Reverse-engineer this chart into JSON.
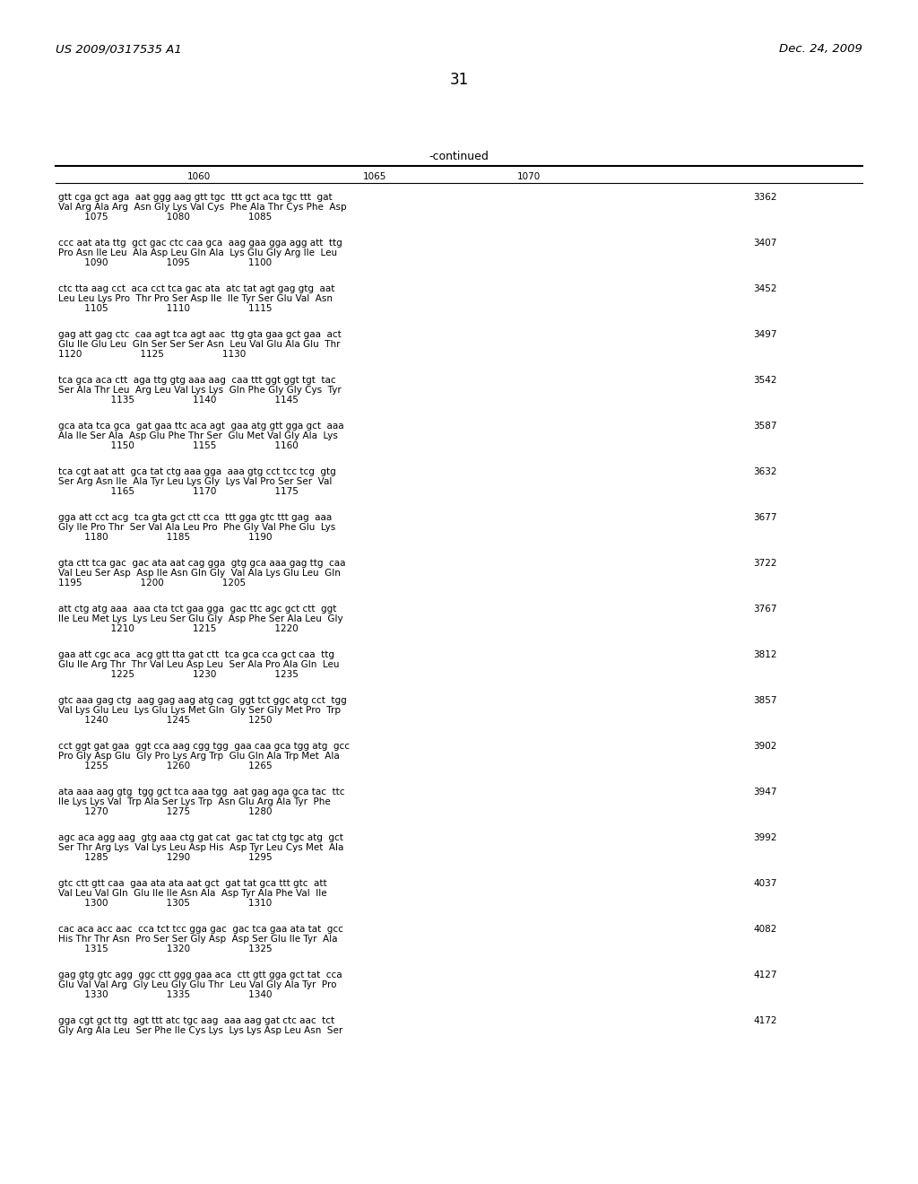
{
  "header_left": "US 2009/0317535 A1",
  "header_right": "Dec. 24, 2009",
  "page_number": "31",
  "continued_label": "-continued",
  "background_color": "#ffffff",
  "text_color": "#000000",
  "sequence_blocks": [
    {
      "dna1": "gtt cga gct aga  aat ggg aag gtt tgc  ttt gct aca tgc ttt  gat",
      "aa1": "Val Arg Ala Arg  Asn Gly Lys Val Cys  Phe Ala Thr Cys Phe  Asp",
      "pos1": "         1075                    1080                    1085",
      "num": "3362"
    },
    {
      "dna1": "ccc aat ata ttg  gct gac ctc caa gca  aag gaa gga agg att  ttg",
      "aa1": "Pro Asn Ile Leu  Ala Asp Leu Gln Ala  Lys Glu Gly Arg Ile  Leu",
      "pos1": "         1090                    1095                    1100",
      "num": "3407"
    },
    {
      "dna1": "ctc tta aag cct  aca cct tca gac ata  atc tat agt gag gtg  aat",
      "aa1": "Leu Leu Lys Pro  Thr Pro Ser Asp Ile  Ile Tyr Ser Glu Val  Asn",
      "pos1": "         1105                    1110                    1115",
      "num": "3452"
    },
    {
      "dna1": "gag att gag ctc  caa agt tca agt aac  ttg gta gaa gct gaa  act",
      "aa1": "Glu Ile Glu Leu  Gln Ser Ser Ser Asn  Leu Val Glu Ala Glu  Thr",
      "pos1": "1120                    1125                    1130",
      "num": "3497"
    },
    {
      "dna1": "tca gca aca ctt  aga ttg gtg aaa aag  caa ttt ggt ggt tgt  tac",
      "aa1": "Ser Ala Thr Leu  Arg Leu Val Lys Lys  Gln Phe Gly Gly Cys  Tyr",
      "pos1": "                  1135                    1140                    1145",
      "num": "3542"
    },
    {
      "dna1": "gca ata tca gca  gat gaa ttc aca agt  gaa atg gtt gga gct  aaa",
      "aa1": "Ala Ile Ser Ala  Asp Glu Phe Thr Ser  Glu Met Val Gly Ala  Lys",
      "pos1": "                  1150                    1155                    1160",
      "num": "3587"
    },
    {
      "dna1": "tca cgt aat att  gca tat ctg aaa gga  aaa gtg cct tcc tcg  gtg",
      "aa1": "Ser Arg Asn Ile  Ala Tyr Leu Lys Gly  Lys Val Pro Ser Ser  Val",
      "pos1": "                  1165                    1170                    1175",
      "num": "3632"
    },
    {
      "dna1": "gga att cct acg  tca gta gct ctt cca  ttt gga gtc ttt gag  aaa",
      "aa1": "Gly Ile Pro Thr  Ser Val Ala Leu Pro  Phe Gly Val Phe Glu  Lys",
      "pos1": "         1180                    1185                    1190",
      "num": "3677"
    },
    {
      "dna1": "gta ctt tca gac  gac ata aat cag gga  gtg gca aaa gag ttg  caa",
      "aa1": "Val Leu Ser Asp  Asp Ile Asn Gln Gly  Val Ala Lys Glu Leu  Gln",
      "pos1": "1195                    1200                    1205",
      "num": "3722"
    },
    {
      "dna1": "att ctg atg aaa  aaa cta tct gaa gga  gac ttc agc gct ctt  ggt",
      "aa1": "Ile Leu Met Lys  Lys Leu Ser Glu Gly  Asp Phe Ser Ala Leu  Gly",
      "pos1": "                  1210                    1215                    1220",
      "num": "3767"
    },
    {
      "dna1": "gaa att cgc aca  acg gtt tta gat ctt  tca gca cca gct caa  ttg",
      "aa1": "Glu Ile Arg Thr  Thr Val Leu Asp Leu  Ser Ala Pro Ala Gln  Leu",
      "pos1": "                  1225                    1230                    1235",
      "num": "3812"
    },
    {
      "dna1": "gtc aaa gag ctg  aag gag aag atg cag  ggt tct ggc atg cct  tgg",
      "aa1": "Val Lys Glu Leu  Lys Glu Lys Met Gln  Gly Ser Gly Met Pro  Trp",
      "pos1": "         1240                    1245                    1250",
      "num": "3857"
    },
    {
      "dna1": "cct ggt gat gaa  ggt cca aag cgg tgg  gaa caa gca tgg atg  gcc",
      "aa1": "Pro Gly Asp Glu  Gly Pro Lys Arg Trp  Glu Gln Ala Trp Met  Ala",
      "pos1": "         1255                    1260                    1265",
      "num": "3902"
    },
    {
      "dna1": "ata aaa aag gtg  tgg gct tca aaa tgg  aat gag aga gca tac  ttc",
      "aa1": "Ile Lys Lys Val  Trp Ala Ser Lys Trp  Asn Glu Arg Ala Tyr  Phe",
      "pos1": "         1270                    1275                    1280",
      "num": "3947"
    },
    {
      "dna1": "agc aca agg aag  gtg aaa ctg gat cat  gac tat ctg tgc atg  gct",
      "aa1": "Ser Thr Arg Lys  Val Lys Leu Asp His  Asp Tyr Leu Cys Met  Ala",
      "pos1": "         1285                    1290                    1295",
      "num": "3992"
    },
    {
      "dna1": "gtc ctt gtt caa  gaa ata ata aat gct  gat tat gca ttt gtc  att",
      "aa1": "Val Leu Val Gln  Glu Ile Ile Asn Ala  Asp Tyr Ala Phe Val  Ile",
      "pos1": "         1300                    1305                    1310",
      "num": "4037"
    },
    {
      "dna1": "cac aca acc aac  cca tct tcc gga gac  gac tca gaa ata tat  gcc",
      "aa1": "His Thr Thr Asn  Pro Ser Ser Gly Asp  Asp Ser Glu Ile Tyr  Ala",
      "pos1": "         1315                    1320                    1325",
      "num": "4082"
    },
    {
      "dna1": "gag gtg gtc agg  ggc ctt ggg gaa aca  ctt gtt gga gct tat  cca",
      "aa1": "Glu Val Val Arg  Gly Leu Gly Glu Thr  Leu Val Gly Ala Tyr  Pro",
      "pos1": "         1330                    1335                    1340",
      "num": "4127"
    },
    {
      "dna1": "gga cgt gct ttg  agt ttt atc tgc aag  aaa aag gat ctc aac  tct",
      "aa1": "Gly Arg Ala Leu  Ser Phe Ile Cys Lys  Lys Lys Asp Leu Asn  Ser",
      "pos1": "",
      "num": "4172"
    }
  ]
}
